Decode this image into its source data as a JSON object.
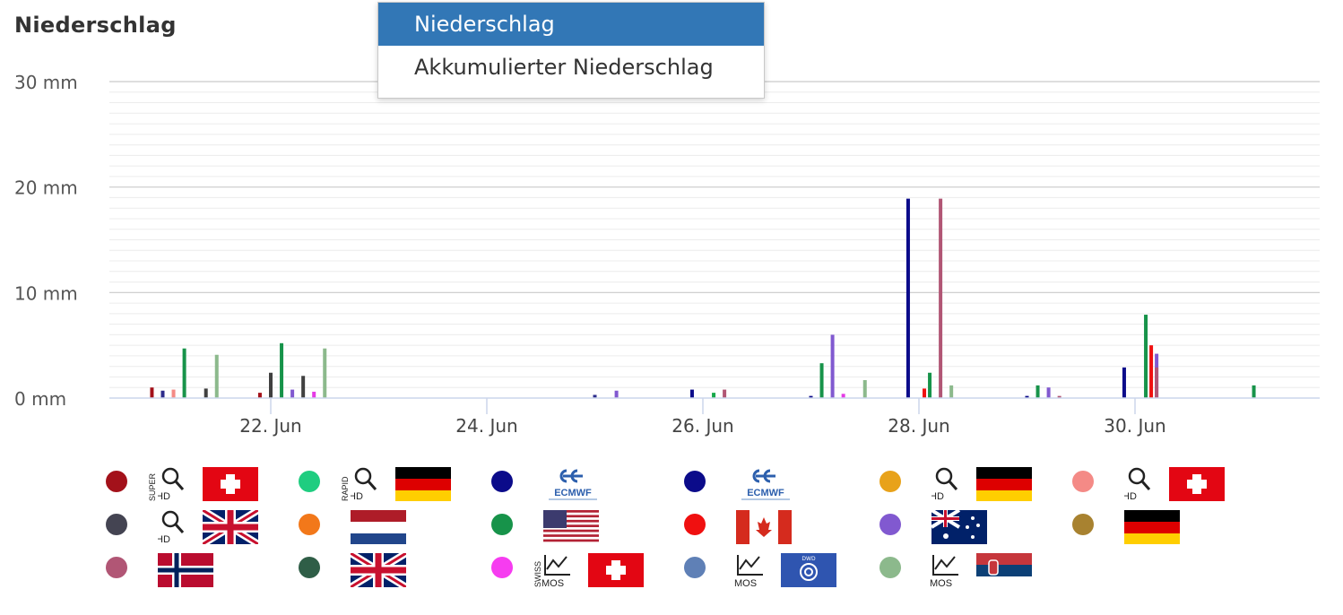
{
  "title": "Niederschlag",
  "dropdown": {
    "options": [
      {
        "label": "Niederschlag",
        "selected": true
      },
      {
        "label": "Akkumulierter Niederschlag",
        "selected": false
      }
    ]
  },
  "chart_data": {
    "type": "bar",
    "x_tick_labels": [
      "22. Jun",
      "24. Jun",
      "26. Jun",
      "28. Jun",
      "30. Jun"
    ],
    "y_tick_labels": [
      "0 mm",
      "10 mm",
      "20 mm",
      "30 mm"
    ],
    "ylim": [
      0,
      30
    ],
    "y_unit": "mm",
    "x_range_days": [
      20.6,
      31.6
    ],
    "grid": "horizontal, minor every 1 mm",
    "series": [
      {
        "color": "#a3111a",
        "points": [
          [
            20.9,
            1.0
          ],
          [
            21.9,
            0.5
          ]
        ]
      },
      {
        "color": "#2c2c8c",
        "points": [
          [
            21.0,
            0.7
          ],
          [
            25.0,
            0.3
          ]
        ]
      },
      {
        "color": "#17934a",
        "points": [
          [
            21.2,
            4.7
          ],
          [
            22.1,
            5.2
          ],
          [
            27.1,
            3.3
          ],
          [
            28.1,
            2.4
          ],
          [
            29.1,
            1.2
          ],
          [
            30.1,
            7.9
          ],
          [
            31.1,
            1.2
          ]
        ]
      },
      {
        "color": "#f48a86",
        "points": [
          [
            21.1,
            0.8
          ],
          [
            22.0,
            0.8
          ]
        ]
      },
      {
        "color": "#404040",
        "points": [
          [
            21.4,
            0.9
          ],
          [
            22.0,
            2.4
          ],
          [
            22.3,
            2.1
          ]
        ]
      },
      {
        "color": "#8cb98c",
        "points": [
          [
            21.5,
            4.1
          ],
          [
            22.5,
            4.7
          ],
          [
            27.5,
            1.7
          ],
          [
            28.3,
            1.2
          ]
        ]
      },
      {
        "color": "#8159d0",
        "points": [
          [
            22.2,
            0.8
          ],
          [
            25.2,
            0.7
          ],
          [
            27.2,
            6.0
          ],
          [
            29.2,
            1.0
          ],
          [
            30.2,
            4.2
          ]
        ]
      },
      {
        "color": "#0b0b8a",
        "points": [
          [
            25.9,
            0.8
          ],
          [
            27.0,
            0.2
          ],
          [
            27.9,
            18.9
          ],
          [
            29.0,
            0.2
          ],
          [
            29.9,
            2.9
          ]
        ]
      },
      {
        "color": "#e53ae5",
        "points": [
          [
            22.4,
            0.6
          ],
          [
            27.3,
            0.4
          ]
        ]
      },
      {
        "color": "#b15675",
        "points": [
          [
            26.2,
            0.8
          ],
          [
            28.2,
            18.9
          ],
          [
            29.3,
            0.2
          ],
          [
            30.2,
            2.9
          ]
        ]
      },
      {
        "color": "#f01010",
        "points": [
          [
            28.05,
            0.9
          ],
          [
            30.15,
            5.0
          ]
        ]
      },
      {
        "color": "#17a84a",
        "points": [
          [
            26.1,
            0.5
          ]
        ]
      }
    ]
  },
  "legend": [
    {
      "color": "#a3111a",
      "icon": "swiss-super-hd-model-icon"
    },
    {
      "color": "#1fcd80",
      "icon": "icon-rapid-hd-germany-model"
    },
    {
      "color": "#0b0b8a",
      "icon": "ecmwf-icon"
    },
    {
      "color": "#0b0b8a",
      "icon": "ecmwf-icon"
    },
    {
      "color": "#e8a21a",
      "icon": "icon-hd-germany-model"
    },
    {
      "color": "#f48a86",
      "icon": "swiss-hd-model-icon"
    },
    {
      "color": "#444452",
      "icon": "uk-hd-model-icon"
    },
    {
      "color": "#f2781a",
      "icon": "netherlands-flag-icon"
    },
    {
      "color": "#17934a",
      "icon": "usa-flag-icon"
    },
    {
      "color": "#f01010",
      "icon": "canada-flag-icon"
    },
    {
      "color": "#8159d0",
      "icon": "australia-flag-icon"
    },
    {
      "color": "#a88230",
      "icon": "germany-flag-icon"
    },
    {
      "color": "#b15675",
      "icon": "norway-flag-icon"
    },
    {
      "color": "#2f5e47",
      "icon": "uk-flag-icon"
    },
    {
      "color": "#f63cf0",
      "icon": "swiss-mos-model-icon"
    },
    {
      "color": "#5f80b6",
      "icon": "mos-dwd-model-icon"
    },
    {
      "color": "#8cb98c",
      "icon": "mos-serbia-model-icon"
    }
  ]
}
